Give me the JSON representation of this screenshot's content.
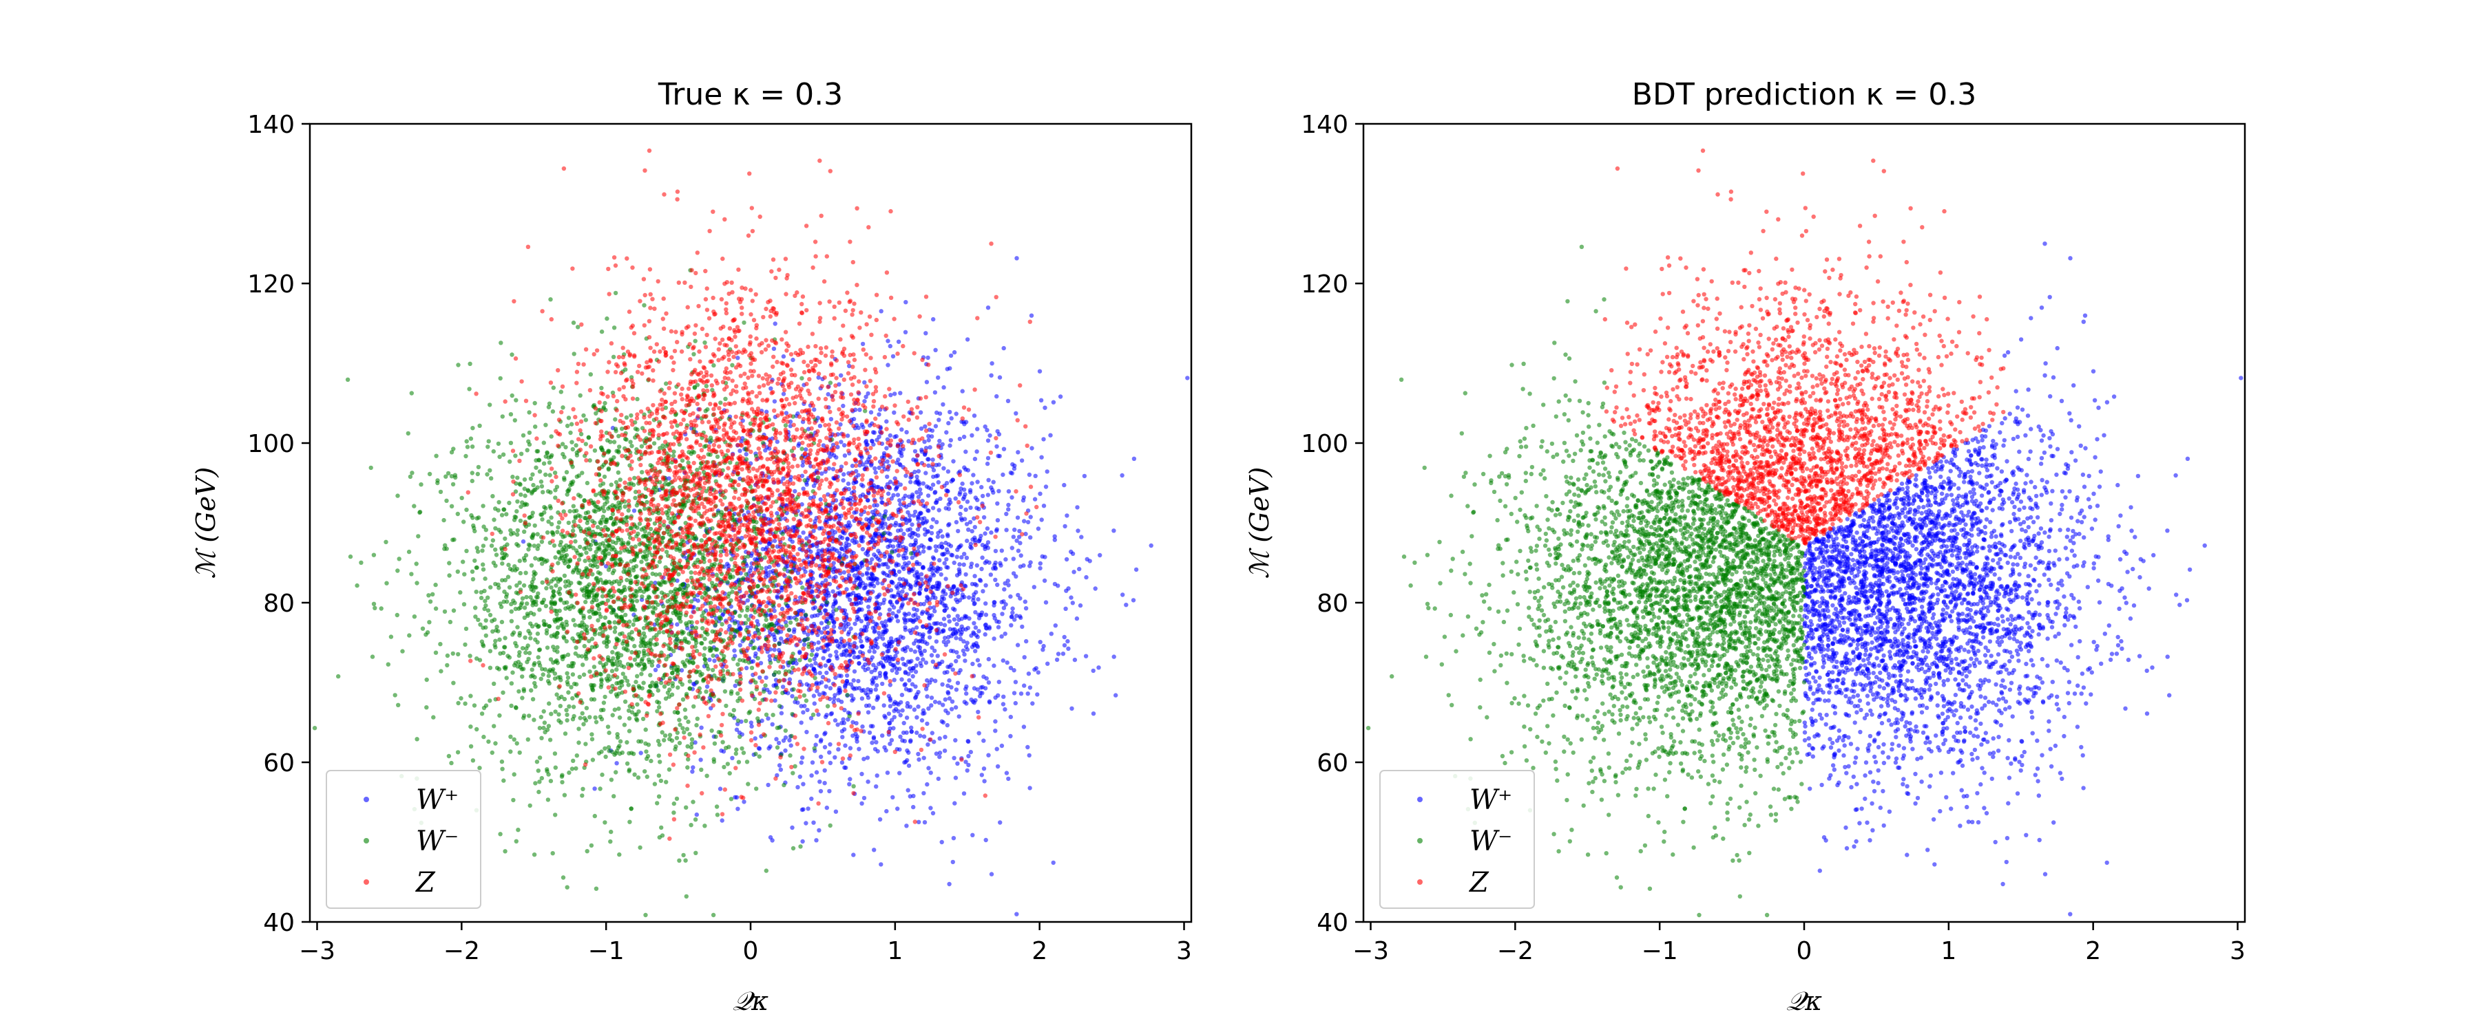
{
  "chart_data": [
    {
      "type": "scatter",
      "title": "True κ = 0.3",
      "xlabel": "𝒬κ",
      "ylabel": "ℳ (GeV)",
      "xlim": [
        -3.05,
        3.05
      ],
      "ylim": [
        40,
        140
      ],
      "xticks": [
        -3,
        -2,
        -1,
        0,
        1,
        2,
        3
      ],
      "xtick_labels": [
        "−3",
        "−2",
        "−1",
        "0",
        "1",
        "2",
        "3"
      ],
      "yticks": [
        40,
        60,
        80,
        100,
        120,
        140
      ],
      "ytick_labels": [
        "40",
        "60",
        "80",
        "100",
        "120",
        "140"
      ],
      "legend_position": "lower-left",
      "grid": false,
      "series": [
        {
          "name": "W⁺",
          "color": "#0000ff",
          "center_x": 0.85,
          "center_y": 82,
          "spread_x": 0.6,
          "spread_y": 12
        },
        {
          "name": "W⁻",
          "color": "#008000",
          "center_x": -0.85,
          "center_y": 82,
          "spread_x": 0.6,
          "spread_y": 12
        },
        {
          "name": "Z",
          "color": "#ff0000",
          "center_x": 0.0,
          "center_y": 93,
          "spread_x": 0.6,
          "spread_y": 13
        }
      ]
    },
    {
      "type": "scatter",
      "title": "BDT prediction κ = 0.3",
      "xlabel": "𝒬κ",
      "ylabel": "ℳ (GeV)",
      "xlim": [
        -3.05,
        3.05
      ],
      "ylim": [
        40,
        140
      ],
      "xticks": [
        -3,
        -2,
        -1,
        0,
        1,
        2,
        3
      ],
      "xtick_labels": [
        "−3",
        "−2",
        "−1",
        "0",
        "1",
        "2",
        "3"
      ],
      "yticks": [
        40,
        60,
        80,
        100,
        120,
        140
      ],
      "ytick_labels": [
        "40",
        "60",
        "80",
        "100",
        "120",
        "140"
      ],
      "legend_position": "lower-left",
      "grid": false,
      "series": [
        {
          "name": "W⁺",
          "color": "#0000ff",
          "region": "right of x=0, below Z boundary"
        },
        {
          "name": "W⁻",
          "color": "#008000",
          "region": "left of x=0, below Z boundary"
        },
        {
          "name": "Z",
          "color": "#ff0000",
          "region": "above V-shaped boundary from (0, 87) to (±1.35, 103)"
        }
      ],
      "decision_boundary": {
        "vertex": [
          0,
          87
        ],
        "left_arm_end": [
          -1.35,
          103
        ],
        "right_arm_end": [
          1.35,
          103
        ],
        "wz_split_x": 0
      }
    }
  ]
}
